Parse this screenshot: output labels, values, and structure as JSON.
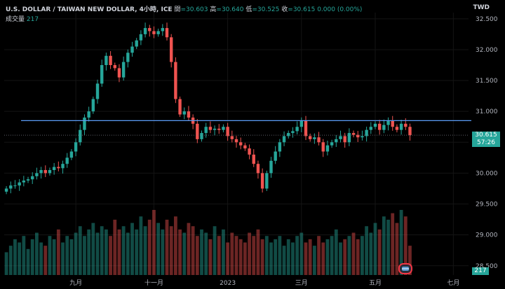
{
  "header": {
    "title": "U.S. DOLLAR / TAIWAN NEW DOLLAR, 4小時, ICE",
    "open_label": "開",
    "open": "=30.603",
    "high_label": "高",
    "high": "=30.640",
    "low_label": "低",
    "low": "=30.525",
    "close_label": "收",
    "close": "=30.615",
    "change": "0.000 (0.00%)"
  },
  "volume": {
    "label": "成交量",
    "value": "217"
  },
  "currency": "TWD",
  "last_price": "30.615",
  "countdown": "57:26",
  "volume_axis_label": "217",
  "colors": {
    "up": "#26a69a",
    "down": "#ef5350",
    "hline": "#5b9cf6",
    "background": "#000000"
  },
  "chart_data": {
    "type": "candlestick",
    "ylim": [
      28.35,
      32.6
    ],
    "y_ticks": [
      "32.500",
      "32.000",
      "31.500",
      "31.000",
      "30.500",
      "30.000",
      "29.500",
      "29.000",
      "28.500"
    ],
    "y_tick_values": [
      32.5,
      32.0,
      31.5,
      31.0,
      30.5,
      30.0,
      29.5,
      29.0,
      28.5
    ],
    "x_ticks": [
      "九月",
      "十一月",
      "2023",
      "三月",
      "五月",
      "七月"
    ],
    "x_tick_index": [
      16,
      34,
      51,
      68,
      85,
      103
    ],
    "x_count": 107,
    "last_index": 93,
    "horizontal_line": 30.85,
    "price_line": 30.615,
    "close_series": [
      29.75,
      29.8,
      29.8,
      29.85,
      29.88,
      29.9,
      29.95,
      30.0,
      30.05,
      30.0,
      30.05,
      30.1,
      30.08,
      30.15,
      30.25,
      30.35,
      30.5,
      30.7,
      30.9,
      31.0,
      31.2,
      31.45,
      31.75,
      31.9,
      31.75,
      31.7,
      31.55,
      31.8,
      31.95,
      32.05,
      32.15,
      32.25,
      32.35,
      32.3,
      32.25,
      32.3,
      32.35,
      32.2,
      31.8,
      31.2,
      30.95,
      31.0,
      30.9,
      30.8,
      30.55,
      30.65,
      30.75,
      30.7,
      30.72,
      30.7,
      30.75,
      30.6,
      30.55,
      30.5,
      30.45,
      30.4,
      30.3,
      30.15,
      30.0,
      29.75,
      30.0,
      30.2,
      30.35,
      30.5,
      30.6,
      30.65,
      30.68,
      30.75,
      30.85,
      30.6,
      30.55,
      30.58,
      30.5,
      30.35,
      30.45,
      30.5,
      30.55,
      30.6,
      30.5,
      30.65,
      30.62,
      30.58,
      30.6,
      30.7,
      30.75,
      30.8,
      30.7,
      30.78,
      30.85,
      30.75,
      30.7,
      30.8,
      30.75,
      30.615
    ],
    "volume_series": [
      0.35,
      0.45,
      0.55,
      0.5,
      0.6,
      0.4,
      0.55,
      0.65,
      0.5,
      0.45,
      0.6,
      0.55,
      0.7,
      0.5,
      0.6,
      0.55,
      0.65,
      0.75,
      0.6,
      0.7,
      0.8,
      0.65,
      0.75,
      0.7,
      0.6,
      0.85,
      0.7,
      0.75,
      0.65,
      0.8,
      0.7,
      0.9,
      0.75,
      0.85,
      1.0,
      0.8,
      0.7,
      0.85,
      0.75,
      0.9,
      0.7,
      0.65,
      0.8,
      0.75,
      0.6,
      0.7,
      0.65,
      0.55,
      0.75,
      0.6,
      0.7,
      0.5,
      0.65,
      0.6,
      0.55,
      0.5,
      0.65,
      0.6,
      0.7,
      0.55,
      0.6,
      0.5,
      0.55,
      0.6,
      0.45,
      0.55,
      0.5,
      0.6,
      0.65,
      0.5,
      0.55,
      0.45,
      0.6,
      0.5,
      0.55,
      0.6,
      0.7,
      0.5,
      0.55,
      0.6,
      0.65,
      0.55,
      0.6,
      0.75,
      0.65,
      0.8,
      0.7,
      0.9,
      0.85,
      0.95,
      0.8,
      1.0,
      0.9,
      0.45
    ]
  }
}
